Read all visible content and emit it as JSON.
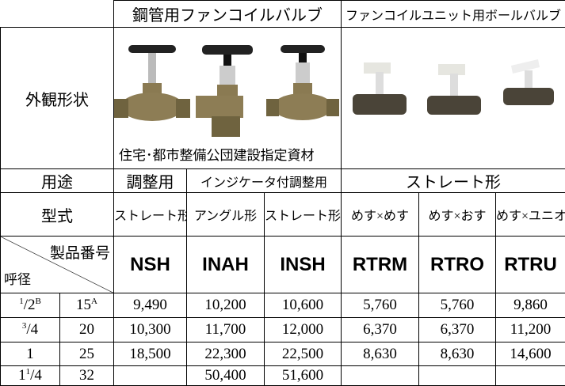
{
  "header": {
    "group_left": "鋼管用ファンコイルバルブ",
    "group_right": "ファンコイルユニット用ボールバルブ"
  },
  "appearance": {
    "label": "外観形状",
    "note": "住宅･都市整備公団建設指定資材"
  },
  "usage": {
    "label": "用途",
    "values": [
      "調整用",
      "インジケータ付調整用",
      "ストレート形"
    ]
  },
  "model_type": {
    "label": "型式",
    "values": [
      "ストレート形",
      "アングル形",
      "ストレート形",
      "めす×めす",
      "めす×おす",
      "めす×ユニオン"
    ]
  },
  "product_header": {
    "top": "製品番号",
    "bottom": "呼径",
    "codes": [
      "NSH",
      "INAH",
      "INSH",
      "RTRM",
      "RTRO",
      "RTRU"
    ]
  },
  "rows": [
    {
      "inch": [
        {
          "t": "1",
          "sup": true
        },
        {
          "t": "/"
        },
        {
          "t": "2"
        },
        {
          "t": "B",
          "sup": true
        }
      ],
      "mm": [
        {
          "t": "15"
        },
        {
          "t": "A",
          "sup": true
        }
      ],
      "values": [
        "9,490",
        "10,200",
        "10,600",
        "5,760",
        "5,760",
        "9,860"
      ]
    },
    {
      "inch": [
        {
          "t": "3",
          "sup": true
        },
        {
          "t": "/"
        },
        {
          "t": "4"
        }
      ],
      "mm": [
        {
          "t": "20"
        }
      ],
      "values": [
        "10,300",
        "11,700",
        "12,000",
        "6,370",
        "6,370",
        "11,200"
      ]
    },
    {
      "inch": [
        {
          "t": "1"
        }
      ],
      "mm": [
        {
          "t": "25"
        }
      ],
      "values": [
        "18,500",
        "22,300",
        "22,500",
        "8,630",
        "8,630",
        "14,600"
      ]
    },
    {
      "inch": [
        {
          "t": "1"
        },
        {
          "t": "1",
          "sup": true
        },
        {
          "t": "/"
        },
        {
          "t": "4"
        }
      ],
      "mm": [
        {
          "t": "32"
        }
      ],
      "values": [
        null,
        "50,400",
        "51,600",
        null,
        null,
        null
      ]
    }
  ]
}
